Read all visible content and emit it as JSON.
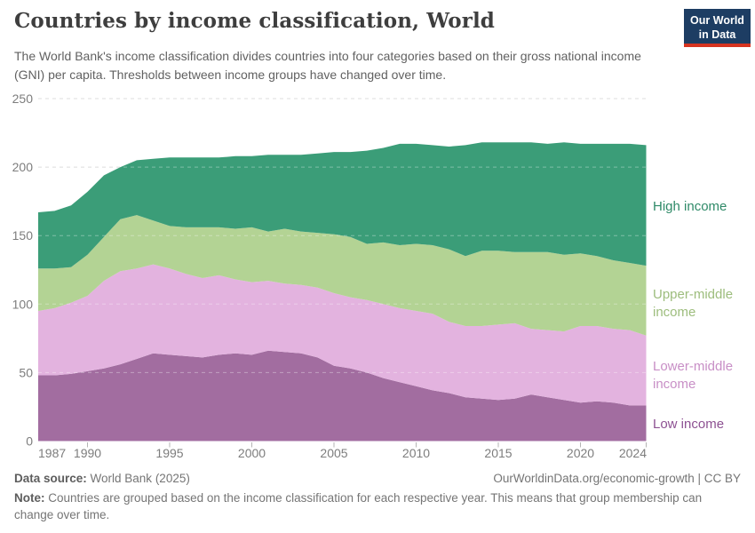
{
  "header": {
    "title": "Countries by income classification, World",
    "subtitle": "The World Bank's income classification divides countries into four categories based on their gross national income (GNI) per capita. Thresholds between income groups have changed over time.",
    "logo": {
      "line1": "Our World",
      "line2": "in Data",
      "bg_color": "#1d3d63",
      "accent_color": "#d63420"
    }
  },
  "chart_data": {
    "type": "area",
    "stacked": true,
    "title": "Countries by income classification, World",
    "xlabel": "",
    "ylabel": "",
    "ylim": [
      0,
      250
    ],
    "yticks": [
      0,
      50,
      100,
      150,
      200,
      250
    ],
    "xticks": [
      1987,
      1990,
      1995,
      2000,
      2005,
      2010,
      2015,
      2020,
      2024
    ],
    "grid": "horizontal-dashed",
    "legend_position": "right-edge-labels",
    "years": [
      1987,
      1988,
      1989,
      1990,
      1991,
      1992,
      1993,
      1994,
      1995,
      1996,
      1997,
      1998,
      1999,
      2000,
      2001,
      2002,
      2003,
      2004,
      2005,
      2006,
      2007,
      2008,
      2009,
      2010,
      2011,
      2012,
      2013,
      2014,
      2015,
      2016,
      2017,
      2018,
      2019,
      2020,
      2021,
      2022,
      2023,
      2024
    ],
    "series": [
      {
        "name": "Low income",
        "color": "#a26da0",
        "label_color": "#8d5192",
        "values": [
          48,
          48,
          49,
          51,
          53,
          56,
          60,
          64,
          63,
          62,
          61,
          63,
          64,
          63,
          66,
          65,
          64,
          61,
          55,
          53,
          50,
          46,
          43,
          40,
          37,
          35,
          32,
          31,
          30,
          31,
          34,
          32,
          30,
          28,
          29,
          28,
          26,
          26
        ]
      },
      {
        "name": "Lower-middle income",
        "color": "#e3b3df",
        "label_color": "#c88fc6",
        "values": [
          47,
          49,
          52,
          55,
          64,
          68,
          66,
          65,
          63,
          60,
          58,
          58,
          54,
          53,
          51,
          50,
          50,
          51,
          53,
          52,
          53,
          54,
          54,
          55,
          56,
          52,
          52,
          53,
          55,
          55,
          48,
          49,
          50,
          56,
          55,
          54,
          55,
          51
        ]
      },
      {
        "name": "Upper-middle income",
        "color": "#b3d394",
        "label_color": "#9dbd7d",
        "values": [
          31,
          29,
          26,
          30,
          32,
          38,
          39,
          32,
          31,
          34,
          37,
          35,
          37,
          40,
          36,
          40,
          39,
          40,
          43,
          44,
          41,
          45,
          46,
          49,
          50,
          53,
          51,
          55,
          54,
          52,
          56,
          57,
          56,
          53,
          51,
          50,
          49,
          51
        ]
      },
      {
        "name": "High income",
        "color": "#3b9d78",
        "label_color": "#2f8a68",
        "values": [
          41,
          42,
          45,
          46,
          45,
          38,
          40,
          45,
          50,
          51,
          51,
          51,
          53,
          52,
          56,
          54,
          56,
          58,
          60,
          62,
          68,
          69,
          74,
          73,
          73,
          75,
          81,
          79,
          79,
          80,
          80,
          79,
          82,
          80,
          82,
          85,
          87,
          88
        ]
      }
    ]
  },
  "footer": {
    "data_source_label": "Data source:",
    "data_source_value": " World Bank (2025)",
    "citation": "OurWorldinData.org/economic-growth | CC BY",
    "note_label": "Note:",
    "note_text": " Countries are grouped based on the income classification for each respective year. This means that group membership can change over time."
  }
}
